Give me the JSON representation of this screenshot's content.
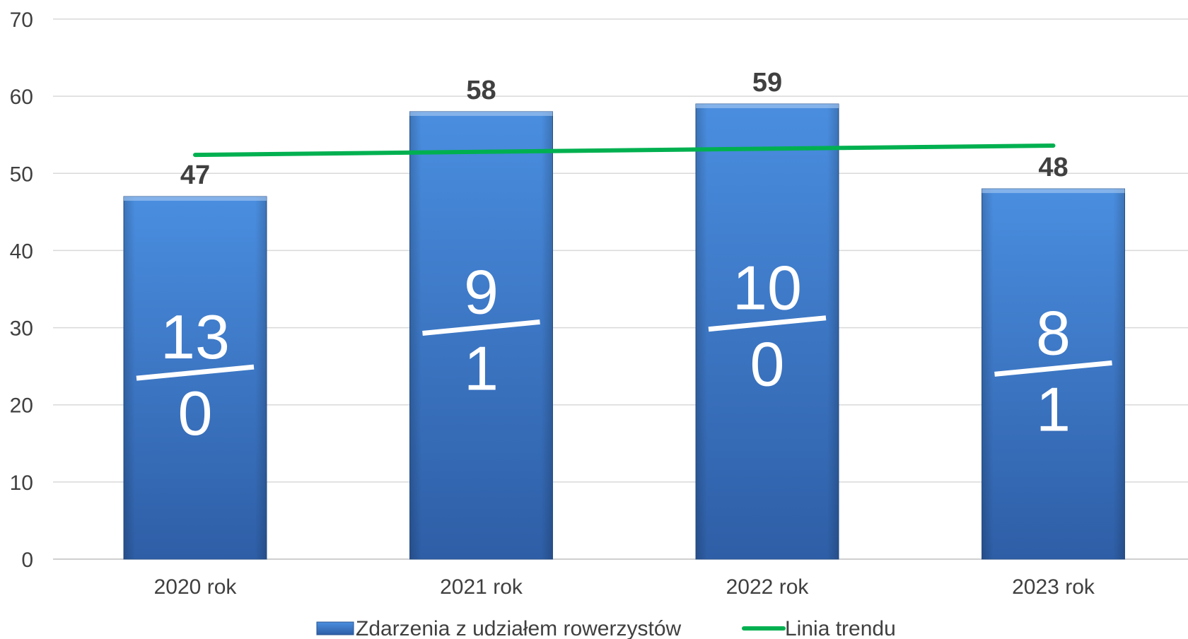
{
  "chart_data": {
    "type": "bar",
    "categories": [
      "2020 rok",
      "2021 rok",
      "2022 rok",
      "2023 rok"
    ],
    "series": [
      {
        "name": "Zdarzenia z udziałem rowerzystów",
        "values": [
          47,
          58,
          59,
          48
        ],
        "color": "#3a78c4"
      }
    ],
    "trend": {
      "name": "Linia trendu",
      "values": [
        52.4,
        52.8,
        53.2,
        53.6
      ],
      "color": "#00b050"
    },
    "bar_annotations": [
      {
        "top": "13",
        "bottom": "0"
      },
      {
        "top": "9",
        "bottom": "1"
      },
      {
        "top": "10",
        "bottom": "0"
      },
      {
        "top": "8",
        "bottom": "1"
      }
    ],
    "ylim": [
      0,
      70
    ],
    "yticks": [
      "0",
      "10",
      "20",
      "30",
      "40",
      "50",
      "60",
      "70"
    ],
    "grid": true,
    "legend_position": "bottom",
    "title": "",
    "xlabel": "",
    "ylabel": ""
  }
}
